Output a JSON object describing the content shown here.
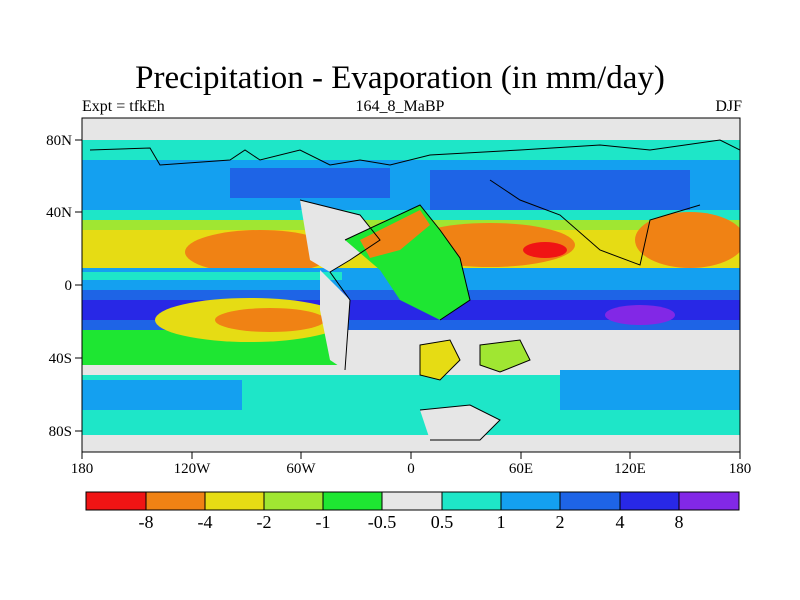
{
  "title": "Precipitation - Evaporation (in mm/day)",
  "subtitle_left": "Expt = tfkEh",
  "subtitle_center": "164_8_MaBP",
  "subtitle_right": "DJF",
  "axes": {
    "x_ticks": [
      "180",
      "120W",
      "60W",
      "0",
      "60E",
      "120E",
      "180"
    ],
    "y_ticks": [
      "80N",
      "40N",
      "0",
      "40S",
      "80S"
    ],
    "lon_range": [
      -180,
      180
    ],
    "lat_range": [
      -90,
      90
    ]
  },
  "colorbar": {
    "colors": [
      "#f01414",
      "#f08214",
      "#e6dc14",
      "#a0e632",
      "#1ee632",
      "#e6e6e6",
      "#1ee6c8",
      "#14a0f0",
      "#1e64e6",
      "#2828e6",
      "#8228e6"
    ],
    "labels": [
      "-8",
      "-4",
      "-2",
      "-1",
      "-0.5",
      "0.5",
      "1",
      "2",
      "4",
      "8"
    ]
  },
  "chart_data": {
    "type": "heatmap",
    "title": "Precipitation - Evaporation (in mm/day)",
    "variable": "Precipitation - Evaporation",
    "units": "mm/day",
    "x": "longitude",
    "y": "latitude",
    "xlim": [
      -180,
      180
    ],
    "ylim": [
      -90,
      90
    ],
    "contour_levels": [
      -8,
      -4,
      -2,
      -1,
      -0.5,
      0.5,
      1,
      2,
      4,
      8
    ],
    "zonal_bands": [
      {
        "lat": [
          70,
          90
        ],
        "approx_value": "0.5 to 1"
      },
      {
        "lat": [
          45,
          70
        ],
        "approx_value": "1 to 4"
      },
      {
        "lat": [
          30,
          45
        ],
        "approx_value": "-1 to 1"
      },
      {
        "lat": [
          10,
          30
        ],
        "approx_value": "-8 to -1"
      },
      {
        "lat": [
          0,
          10
        ],
        "approx_value": "1 to 4"
      },
      {
        "lat": [
          -20,
          0
        ],
        "approx_value": "2 to 8"
      },
      {
        "lat": [
          -40,
          -20
        ],
        "approx_value": "-4 to -0.5"
      },
      {
        "lat": [
          -65,
          -40
        ],
        "approx_value": "1 to 4"
      },
      {
        "lat": [
          -90,
          -65
        ],
        "approx_value": "0.5 to 2"
      }
    ]
  }
}
